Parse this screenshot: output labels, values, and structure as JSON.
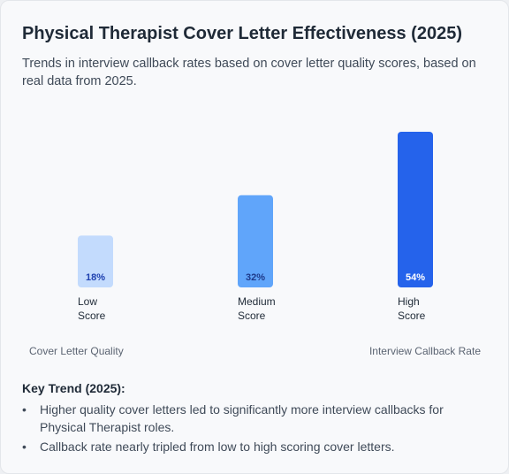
{
  "title": "Physical Therapist Cover Letter Effectiveness (2025)",
  "subtitle": "Trends in interview callback rates based on cover letter quality scores, based on real data from 2025.",
  "chart_data": {
    "type": "bar",
    "categories": [
      [
        "Low",
        "Score"
      ],
      [
        "Medium",
        "Score"
      ],
      [
        "High",
        "Score"
      ]
    ],
    "values": [
      18,
      32,
      54
    ],
    "data_labels": [
      "18%",
      "32%",
      "54%"
    ],
    "colors": [
      "#c3dbfd",
      "#60a5fa",
      "#2563eb"
    ],
    "label_colors": [
      "#1e40af",
      "#1e3a8a",
      "#ffffff"
    ],
    "xlabel": "Cover Letter Quality",
    "ylabel": "Interview Callback Rate",
    "ylim": [
      0,
      54
    ],
    "grid": false,
    "legend": "none"
  },
  "key_trend": {
    "title": "Key Trend (2025):",
    "bullets": [
      "Higher quality cover letters led to significantly more interview callbacks for Physical Therapist roles.",
      "Callback rate nearly tripled from low to high scoring cover letters."
    ]
  }
}
